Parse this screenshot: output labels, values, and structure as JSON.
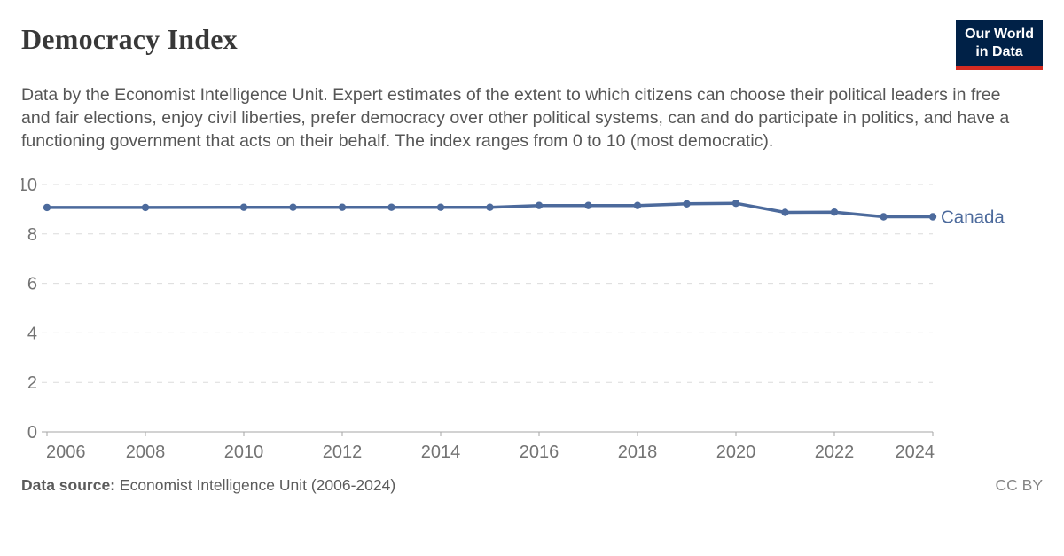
{
  "header": {
    "title": "Democracy Index",
    "logo": {
      "line1": "Our World",
      "line2": "in Data",
      "bg_color": "#002147",
      "accent_color": "#d42b21",
      "text_color": "#ffffff"
    }
  },
  "subtitle": "Data by the Economist Intelligence Unit. Expert estimates of the extent to which citizens can choose their political leaders in free and fair elections, enjoy civil liberties, prefer democracy over other political systems, can and do participate in politics, and have a functioning government that acts on their behalf. The index ranges from 0 to 10 (most democratic).",
  "chart_data": {
    "type": "line",
    "title": "Democracy Index",
    "xlabel": "",
    "ylabel": "",
    "xlim": [
      2006,
      2024
    ],
    "ylim": [
      0,
      10
    ],
    "x_ticks": [
      2006,
      2008,
      2010,
      2012,
      2014,
      2016,
      2018,
      2020,
      2022,
      2024
    ],
    "y_ticks": [
      0,
      2,
      4,
      6,
      8,
      10
    ],
    "grid": "horizontal-dashed",
    "legend_position": "end-of-line-label",
    "colors": {
      "gridline": "#dcdcdc",
      "axis": "#a5a5a5",
      "tick_label": "#737373"
    },
    "series": [
      {
        "name": "Canada",
        "color": "#4C6A9C",
        "x": [
          2006,
          2008,
          2010,
          2011,
          2012,
          2013,
          2014,
          2015,
          2016,
          2017,
          2018,
          2019,
          2020,
          2021,
          2022,
          2023,
          2024
        ],
        "values": [
          9.07,
          9.07,
          9.08,
          9.08,
          9.08,
          9.08,
          9.08,
          9.08,
          9.15,
          9.15,
          9.15,
          9.22,
          9.24,
          8.87,
          8.88,
          8.69,
          8.69
        ]
      }
    ]
  },
  "footer": {
    "source_label": "Data source:",
    "source_text": "Economist Intelligence Unit (2006-2024)",
    "license": "CC BY"
  }
}
